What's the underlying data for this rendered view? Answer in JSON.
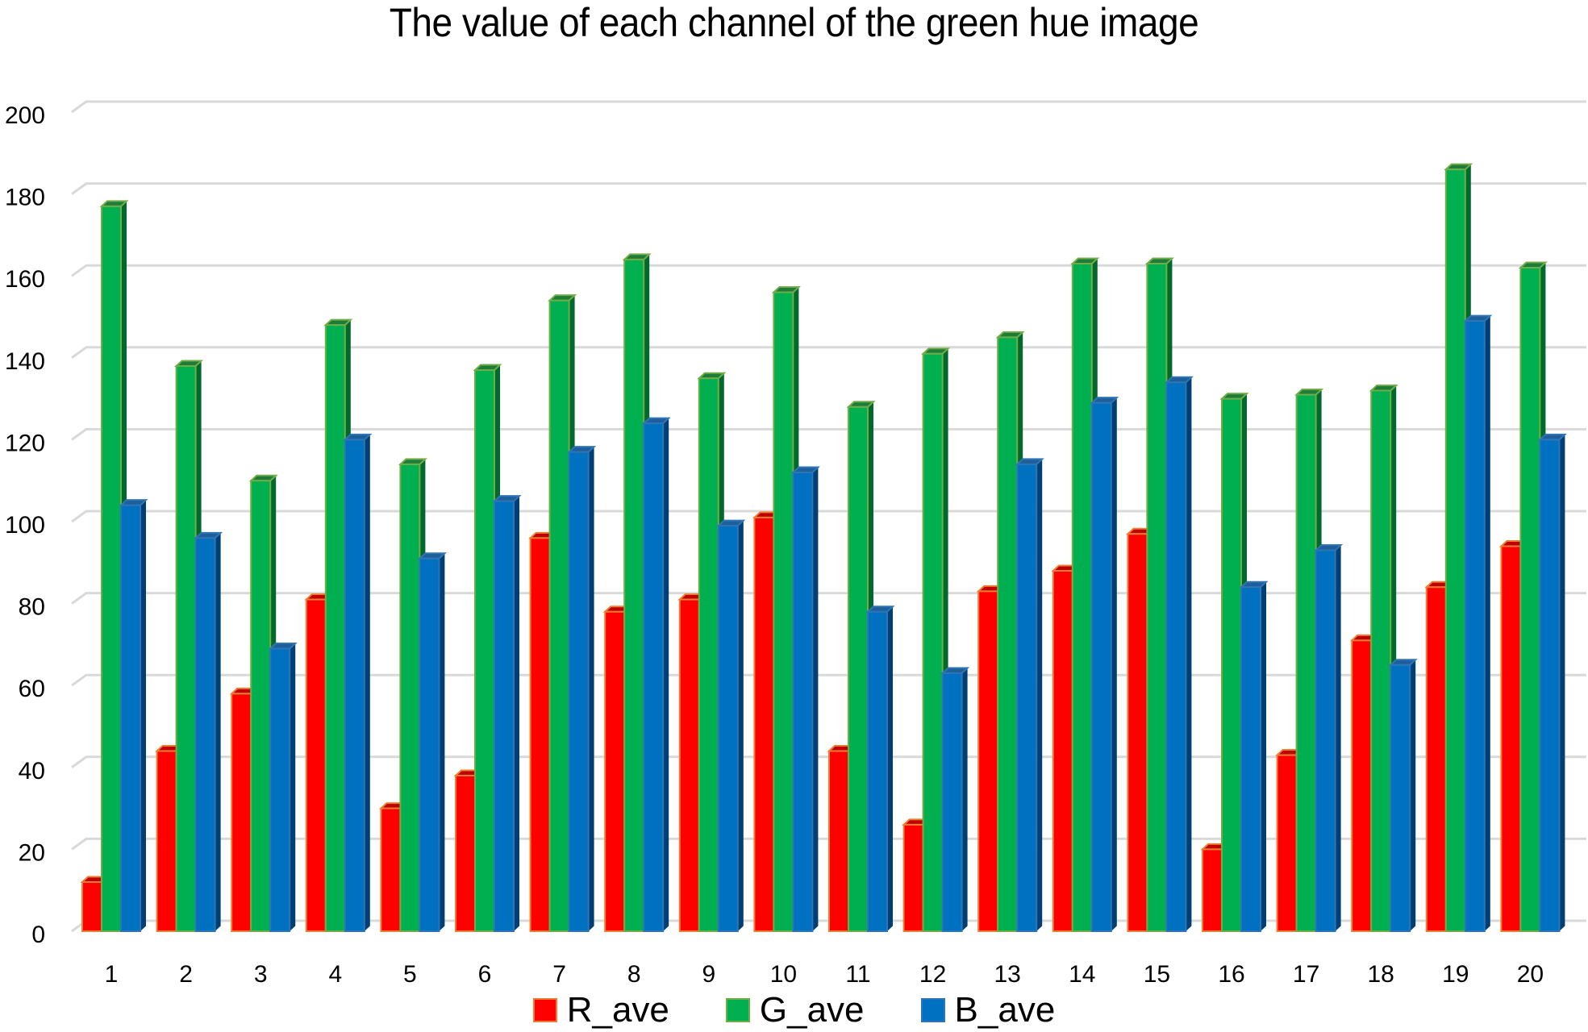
{
  "title": "The value of each channel of the green hue image",
  "colors": {
    "R_ave": {
      "fill": "#ff0000",
      "edge": "#ed7d31",
      "side": "#b30000",
      "top": "#c00000"
    },
    "G_ave": {
      "fill": "#00b050",
      "edge": "#70ad47",
      "side": "#006a2e",
      "top": "#1e7b3a"
    },
    "B_ave": {
      "fill": "#0070c0",
      "edge": "#2e75b6",
      "side": "#003f73",
      "top": "#1f5f99"
    },
    "grid": "#d9d9d9"
  },
  "legend": [
    {
      "label": "R_ave",
      "key": "R_ave"
    },
    {
      "label": "G_ave",
      "key": "G_ave"
    },
    {
      "label": "B_ave",
      "key": "B_ave"
    }
  ],
  "chart_data": {
    "type": "bar",
    "subtype": "3d-clustered-column",
    "title": "The value of each channel of the green hue image",
    "xlabel": "",
    "ylabel": "",
    "categories": [
      "1",
      "2",
      "3",
      "4",
      "5",
      "6",
      "7",
      "8",
      "9",
      "10",
      "11",
      "12",
      "13",
      "14",
      "15",
      "16",
      "17",
      "18",
      "19",
      "20"
    ],
    "series": [
      {
        "name": "R_ave",
        "values": [
          12,
          44,
          58,
          81,
          30,
          38,
          96,
          78,
          81,
          101,
          44,
          26,
          83,
          88,
          97,
          20,
          43,
          71,
          84,
          94
        ]
      },
      {
        "name": "G_ave",
        "values": [
          177,
          138,
          110,
          148,
          114,
          137,
          154,
          164,
          135,
          156,
          128,
          141,
          145,
          163,
          163,
          130,
          131,
          132,
          186,
          162
        ]
      },
      {
        "name": "B_ave",
        "values": [
          104,
          96,
          69,
          120,
          91,
          105,
          117,
          124,
          99,
          112,
          78,
          63,
          114,
          129,
          134,
          84,
          93,
          65,
          149,
          120
        ]
      }
    ],
    "ylim": [
      0,
      200
    ],
    "yticks": [
      0,
      20,
      40,
      60,
      80,
      100,
      120,
      140,
      160,
      180,
      200
    ],
    "grid": true,
    "legend_position": "bottom"
  }
}
